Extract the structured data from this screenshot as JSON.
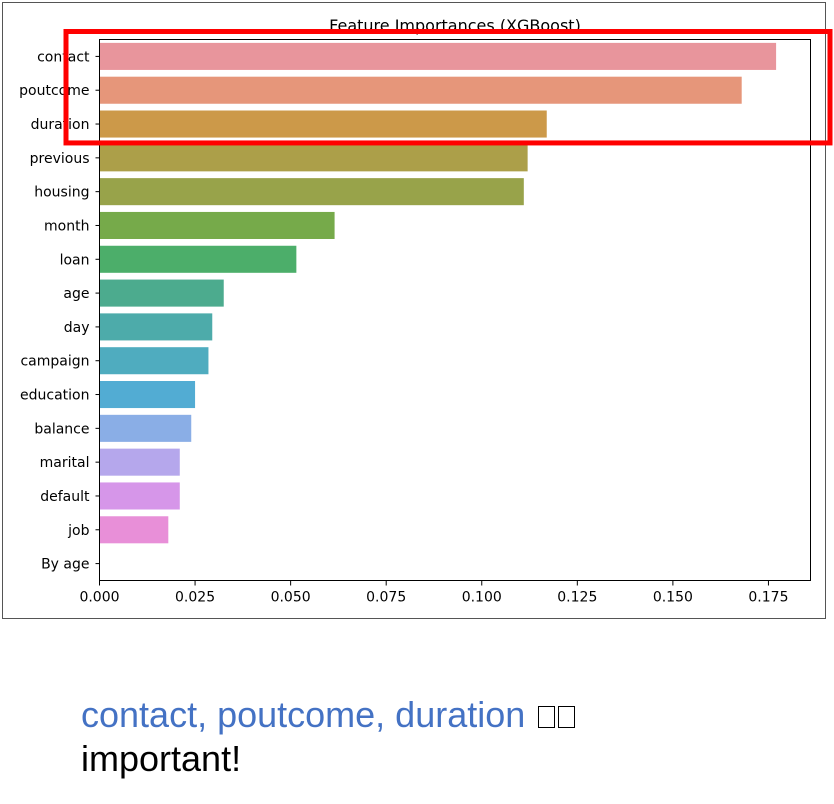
{
  "chart_data": {
    "type": "bar",
    "orientation": "horizontal",
    "title": "Feature Importances (XGBoost)",
    "xlabel": "",
    "ylabel": "",
    "categories": [
      "contact",
      "poutcome",
      "duration",
      "previous",
      "housing",
      "month",
      "loan",
      "age",
      "day",
      "campaign",
      "education",
      "balance",
      "marital",
      "default",
      "job",
      "By age"
    ],
    "values": [
      0.177,
      0.168,
      0.117,
      0.112,
      0.111,
      0.0615,
      0.0515,
      0.0325,
      0.0295,
      0.0285,
      0.025,
      0.024,
      0.021,
      0.021,
      0.018,
      0.0
    ],
    "colors": [
      "#e8959c",
      "#e6967a",
      "#cc9949",
      "#ac9f49",
      "#98a34a",
      "#76aa4a",
      "#4cae6a",
      "#4cab8e",
      "#4dabaa",
      "#4facbf",
      "#52acd3",
      "#8aaee6",
      "#b5a7ec",
      "#d696e9",
      "#e88fd8",
      "#ee92b0"
    ],
    "xlim": [
      0,
      0.186
    ],
    "xticks": [
      "0.000",
      "0.025",
      "0.050",
      "0.075",
      "0.100",
      "0.125",
      "0.150",
      "0.175"
    ],
    "grid": false,
    "legend": "none",
    "highlight": {
      "categories": [
        "contact",
        "poutcome",
        "duration"
      ],
      "color": "#ff0000"
    }
  },
  "caption": {
    "line1": "contact, poutcome, duration",
    "line2": "important!"
  }
}
